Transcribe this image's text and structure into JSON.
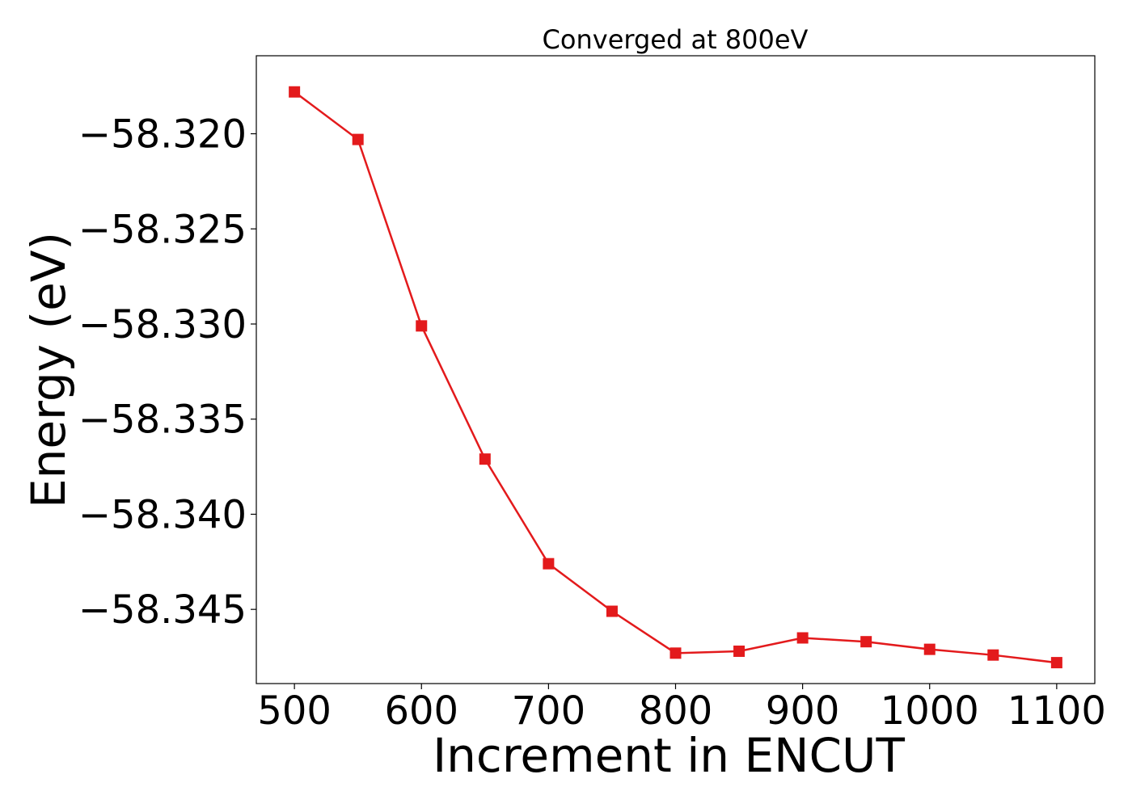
{
  "chart_data": {
    "type": "line",
    "title": "Converged at 800eV",
    "xlabel": "Increment in ENCUT",
    "ylabel": "Energy (eV)",
    "xlim": [
      470,
      1130
    ],
    "ylim": [
      -58.3489,
      -58.3159
    ],
    "xticks": [
      500,
      600,
      700,
      800,
      900,
      1000,
      1100
    ],
    "yticks": [
      -58.32,
      -58.325,
      -58.33,
      -58.335,
      -58.34,
      -58.345
    ],
    "ytick_labels": [
      "−58.320",
      "−58.325",
      "−58.330",
      "−58.335",
      "−58.340",
      "−58.345"
    ],
    "grid": false,
    "series": [
      {
        "color": "#e31a1c",
        "marker": "square",
        "x": [
          500,
          550,
          600,
          650,
          700,
          750,
          800,
          850,
          900,
          950,
          1000,
          1050,
          1100
        ],
        "y": [
          -58.3178,
          -58.3203,
          -58.3301,
          -58.3371,
          -58.3426,
          -58.3451,
          -58.3473,
          -58.3472,
          -58.3465,
          -58.3467,
          -58.3471,
          -58.3474,
          -58.3478
        ]
      }
    ]
  }
}
